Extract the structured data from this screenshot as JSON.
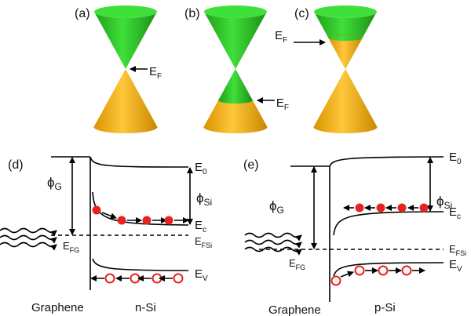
{
  "cones": [
    {
      "label": "(a)",
      "fermi": [
        "E",
        "F"
      ]
    },
    {
      "label": "(b)",
      "fermi": [
        "E",
        "F"
      ]
    },
    {
      "label": "(c)",
      "fermi": [
        "E",
        "F"
      ]
    }
  ],
  "bands": [
    {
      "label": "(d)",
      "phi_metal": [
        "ϕ",
        "G"
      ],
      "phi_semi": [
        "ϕ",
        "Si"
      ],
      "vacuum": [
        "E",
        "0"
      ],
      "conduction": [
        "E",
        "c"
      ],
      "fermi_semi": [
        "E",
        "FSi"
      ],
      "fermi_graphene": [
        "E",
        "FG"
      ],
      "valence": [
        "E",
        "V"
      ],
      "metal": "Graphene",
      "semiconductor": "n-Si"
    },
    {
      "label": "(e)",
      "phi_metal": [
        "ϕ",
        "G"
      ],
      "phi_semi": [
        "ϕ",
        "Si"
      ],
      "vacuum": [
        "E",
        "0"
      ],
      "conduction": [
        "E",
        "c"
      ],
      "fermi_semi": [
        "E",
        "FSi"
      ],
      "fermi_graphene": [
        "E",
        "FG"
      ],
      "valence": [
        "E",
        "V"
      ],
      "metal": "Graphene",
      "semiconductor": "p-Si"
    }
  ]
}
